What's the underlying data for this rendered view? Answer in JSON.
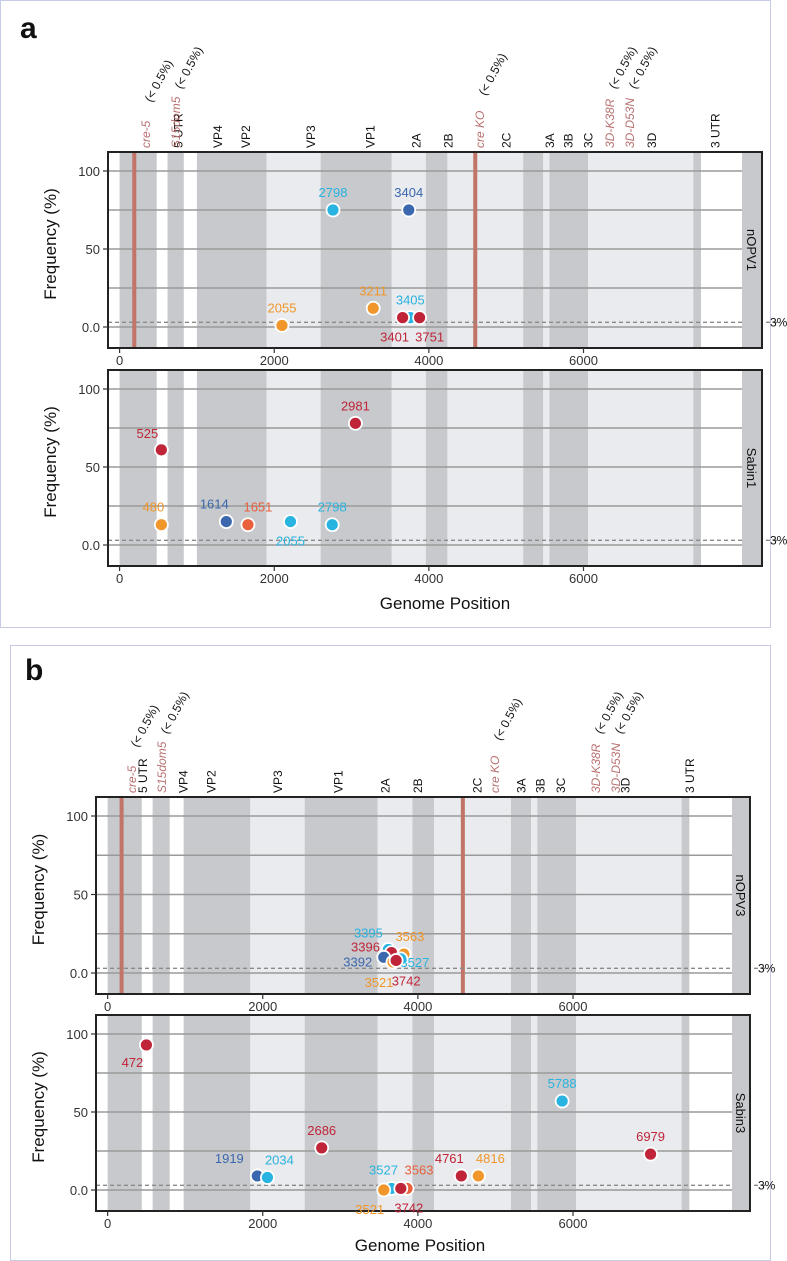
{
  "colors": {
    "dark_blue": "#3a67ad",
    "light_blue": "#29b3e0",
    "orange": "#f0962a",
    "red_orange": "#e9603c",
    "crimson": "#c02438",
    "region_dark": "#c7c9cc",
    "region_light": "#e9ebee",
    "cre_marker": "#c17468"
  },
  "chart_data": [
    {
      "panel": "a",
      "type": "scatter",
      "xlabel": "Genome Position",
      "ylabel": "Frequency (%)",
      "xlim": [
        -150,
        8050
      ],
      "xticks": [
        0,
        2000,
        4000,
        6000
      ],
      "yticks": [
        {
          "v": 100,
          "l": "100"
        },
        {
          "v": 50,
          "l": "50"
        },
        {
          "v": 0,
          "l": "0.0"
        }
      ],
      "gridlines": [
        0,
        25,
        50,
        75,
        100
      ],
      "threshold": {
        "value": 3,
        "label": "3%"
      },
      "genome_regions": [
        {
          "name": "5 UTR",
          "start": 0,
          "end": 480,
          "shade": "dark"
        },
        {
          "name": "VP4",
          "start": 620,
          "end": 830,
          "shade": "dark"
        },
        {
          "name": "VP2",
          "start": 1000,
          "end": 1900,
          "shade": "dark"
        },
        {
          "name": "VP3",
          "start": 1900,
          "end": 2600,
          "shade": "light"
        },
        {
          "name": "VP1",
          "start": 2600,
          "end": 3520,
          "shade": "dark"
        },
        {
          "name": "2A",
          "start": 3520,
          "end": 3960,
          "shade": "light"
        },
        {
          "name": "2B",
          "start": 3960,
          "end": 4240,
          "shade": "dark"
        },
        {
          "name": "2C",
          "start": 4240,
          "end": 5220,
          "shade": "light"
        },
        {
          "name": "3A",
          "start": 5220,
          "end": 5480,
          "shade": "dark"
        },
        {
          "name": "3B",
          "start": 5480,
          "end": 5560,
          "shade": "light"
        },
        {
          "name": "3C",
          "start": 5560,
          "end": 6060,
          "shade": "dark"
        },
        {
          "name": "3D",
          "start": 6060,
          "end": 7420,
          "shade": "light"
        },
        {
          "name": "3 UTR",
          "start": 7420,
          "end": 7520,
          "shade": "dark"
        }
      ],
      "region_label_positions": [
        {
          "text": "5 UTR",
          "x": 200
        },
        {
          "text": "VP4",
          "x": 500
        },
        {
          "text": "VP2",
          "x": 710
        },
        {
          "text": "VP3",
          "x": 1200
        },
        {
          "text": "VP1",
          "x": 1650
        },
        {
          "text": "2A",
          "x": 2000
        },
        {
          "text": "2B",
          "x": 2240
        },
        {
          "text": "2C",
          "x": 2680
        },
        {
          "text": "3A",
          "x": 3010
        },
        {
          "text": "3B",
          "x": 3150
        },
        {
          "text": "3C",
          "x": 3300
        },
        {
          "text": "3D",
          "x": 3780
        },
        {
          "text": "3 UTR",
          "x": 4260
        }
      ],
      "markers": [
        {
          "name": "cre-5",
          "annotation": "(< 0.5%)",
          "pos": 190
        },
        {
          "name": "S15dom5",
          "annotation": "(< 0.5%)",
          "pos": null
        },
        {
          "name": "cre KO",
          "annotation": "(< 0.5%)",
          "pos": 4600
        },
        {
          "name": "3D-K38R",
          "annotation": "(< 0.5%)",
          "pos": null
        },
        {
          "name": "3D-D53N",
          "annotation": "(< 0.5%)",
          "pos": null
        }
      ],
      "facets": [
        {
          "label": "nOPV1",
          "points": [
            {
              "label": "2798",
              "x": 2760,
              "y": 75,
              "color": "light_blue"
            },
            {
              "label": "3404",
              "x": 3740,
              "y": 75,
              "color": "dark_blue"
            },
            {
              "label": "2055",
              "x": 2100,
              "y": 1,
              "color": "orange"
            },
            {
              "label": "3211",
              "x": 3280,
              "y": 12,
              "color": "orange"
            },
            {
              "label": "3405",
              "x": 3760,
              "y": 6,
              "color": "light_blue"
            },
            {
              "label": "3401",
              "x": 3660,
              "y": 6,
              "color": "crimson"
            },
            {
              "label": "3751",
              "x": 3880,
              "y": 6,
              "color": "crimson"
            }
          ]
        },
        {
          "label": "Sabin1",
          "points": [
            {
              "label": "2981",
              "x": 3050,
              "y": 78,
              "color": "crimson"
            },
            {
              "label": "525",
              "x": 540,
              "y": 61,
              "color": "crimson"
            },
            {
              "label": "480",
              "x": 540,
              "y": 13,
              "color": "orange"
            },
            {
              "label": "1614",
              "x": 1380,
              "y": 15,
              "color": "dark_blue"
            },
            {
              "label": "1651",
              "x": 1660,
              "y": 13,
              "color": "red_orange"
            },
            {
              "label": "2055",
              "x": 2210,
              "y": 15,
              "color": "light_blue"
            },
            {
              "label": "2798",
              "x": 2750,
              "y": 13,
              "color": "light_blue"
            }
          ]
        }
      ]
    },
    {
      "panel": "b",
      "type": "scatter",
      "xlabel": "Genome Position",
      "ylabel": "Frequency (%)",
      "xlim": [
        -150,
        8050
      ],
      "xticks": [
        0,
        2000,
        4000,
        6000
      ],
      "yticks": [
        {
          "v": 100,
          "l": "100"
        },
        {
          "v": 50,
          "l": "50"
        },
        {
          "v": 0,
          "l": "0.0"
        }
      ],
      "gridlines": [
        0,
        25,
        50,
        75,
        100
      ],
      "threshold": {
        "value": 3,
        "label": "3%"
      },
      "genome_regions": [
        {
          "name": "5 UTR",
          "start": 0,
          "end": 440,
          "shade": "dark"
        },
        {
          "name": "VP4",
          "start": 580,
          "end": 800,
          "shade": "dark"
        },
        {
          "name": "VP2",
          "start": 980,
          "end": 1840,
          "shade": "dark"
        },
        {
          "name": "VP3",
          "start": 1840,
          "end": 2540,
          "shade": "light"
        },
        {
          "name": "VP1",
          "start": 2540,
          "end": 3480,
          "shade": "dark"
        },
        {
          "name": "2A",
          "start": 3480,
          "end": 3930,
          "shade": "light"
        },
        {
          "name": "2B",
          "start": 3930,
          "end": 4210,
          "shade": "dark"
        },
        {
          "name": "2C",
          "start": 4210,
          "end": 5200,
          "shade": "light"
        },
        {
          "name": "3A",
          "start": 5200,
          "end": 5460,
          "shade": "dark"
        },
        {
          "name": "3B",
          "start": 5460,
          "end": 5540,
          "shade": "light"
        },
        {
          "name": "3C",
          "start": 5540,
          "end": 6040,
          "shade": "dark"
        },
        {
          "name": "3D",
          "start": 6040,
          "end": 7400,
          "shade": "light"
        },
        {
          "name": "3 UTR",
          "start": 7400,
          "end": 7500,
          "shade": "dark"
        }
      ],
      "region_label_positions": [
        {
          "text": "5 UTR",
          "x": 200
        },
        {
          "text": "VP4",
          "x": 500
        },
        {
          "text": "VP2",
          "x": 710
        },
        {
          "text": "VP3",
          "x": 1200
        },
        {
          "text": "VP1",
          "x": 1650
        },
        {
          "text": "2A",
          "x": 2000
        },
        {
          "text": "2B",
          "x": 2240
        },
        {
          "text": "2C",
          "x": 2680
        },
        {
          "text": "3A",
          "x": 3010
        },
        {
          "text": "3B",
          "x": 3150
        },
        {
          "text": "3C",
          "x": 3300
        },
        {
          "text": "3D",
          "x": 3780
        },
        {
          "text": "3 UTR",
          "x": 4260
        }
      ],
      "markers": [
        {
          "name": "cre-5",
          "annotation": "(< 0.5%)",
          "pos": 180
        },
        {
          "name": "S15dom5",
          "annotation": "(< 0.5%)",
          "pos": null
        },
        {
          "name": "cre KO",
          "annotation": "(< 0.5%)",
          "pos": 4580
        },
        {
          "name": "3D-K38R",
          "annotation": "(< 0.5%)",
          "pos": null
        },
        {
          "name": "3D-D53N",
          "annotation": "(< 0.5%)",
          "pos": null
        }
      ],
      "facets": [
        {
          "label": "nOPV3",
          "points": [
            {
              "label": "3395",
              "x": 3620,
              "y": 15,
              "color": "light_blue"
            },
            {
              "label": "3396",
              "x": 3660,
              "y": 13,
              "color": "crimson"
            },
            {
              "label": "3392",
              "x": 3560,
              "y": 10,
              "color": "dark_blue"
            },
            {
              "label": "3563",
              "x": 3820,
              "y": 12,
              "color": "orange"
            },
            {
              "label": "3527",
              "x": 3780,
              "y": 9,
              "color": "light_blue"
            },
            {
              "label": "3521",
              "x": 3680,
              "y": 7,
              "color": "orange"
            },
            {
              "label": "3742",
              "x": 3720,
              "y": 8,
              "color": "crimson"
            }
          ]
        },
        {
          "label": "Sabin3",
          "points": [
            {
              "label": "472",
              "x": 500,
              "y": 93,
              "color": "crimson"
            },
            {
              "label": "2686",
              "x": 2760,
              "y": 27,
              "color": "crimson"
            },
            {
              "label": "5788",
              "x": 5860,
              "y": 57,
              "color": "light_blue"
            },
            {
              "label": "6979",
              "x": 7000,
              "y": 23,
              "color": "crimson"
            },
            {
              "label": "1919",
              "x": 1930,
              "y": 9,
              "color": "dark_blue"
            },
            {
              "label": "2034",
              "x": 2060,
              "y": 8,
              "color": "light_blue"
            },
            {
              "label": "4761",
              "x": 4560,
              "y": 9,
              "color": "crimson"
            },
            {
              "label": "4816",
              "x": 4780,
              "y": 9,
              "color": "orange"
            },
            {
              "label": "3527",
              "x": 3660,
              "y": 1,
              "color": "light_blue"
            },
            {
              "label": "3563",
              "x": 3860,
              "y": 1,
              "color": "red_orange"
            },
            {
              "label": "3521",
              "x": 3560,
              "y": 0,
              "color": "orange"
            },
            {
              "label": "3742",
              "x": 3780,
              "y": 1,
              "color": "crimson"
            }
          ]
        }
      ]
    }
  ]
}
